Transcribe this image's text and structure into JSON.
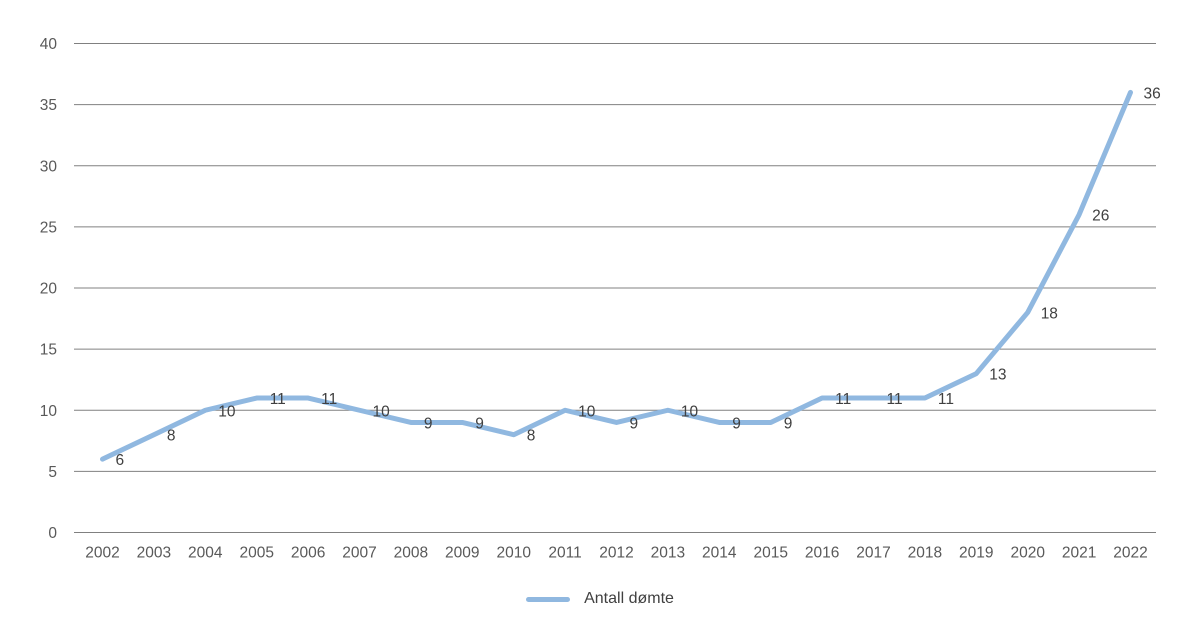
{
  "chart_data": {
    "type": "line",
    "title": "",
    "categories": [
      "2002",
      "2003",
      "2004",
      "2005",
      "2006",
      "2007",
      "2008",
      "2009",
      "2010",
      "2011",
      "2012",
      "2013",
      "2014",
      "2015",
      "2016",
      "2017",
      "2018",
      "2019",
      "2020",
      "2021",
      "2022"
    ],
    "series": [
      {
        "name": "Antall dømte",
        "values": [
          6,
          8,
          10,
          11,
          11,
          10,
          9,
          9,
          8,
          10,
          9,
          10,
          9,
          9,
          11,
          11,
          11,
          13,
          18,
          26,
          36
        ]
      }
    ],
    "ylim": [
      0,
      40
    ],
    "yticks": [
      0,
      5,
      10,
      15,
      20,
      25,
      30,
      35,
      40
    ],
    "xlabel": "",
    "ylabel": "",
    "grid": true,
    "data_labels": true,
    "legend_position": "bottom"
  },
  "legend": {
    "series_label": "Antall dømte"
  },
  "colors": {
    "line": "#90B8E0",
    "grid": "#808080",
    "axis_text": "#595959",
    "data_label_text": "#404040",
    "background": "#FFFFFF"
  }
}
